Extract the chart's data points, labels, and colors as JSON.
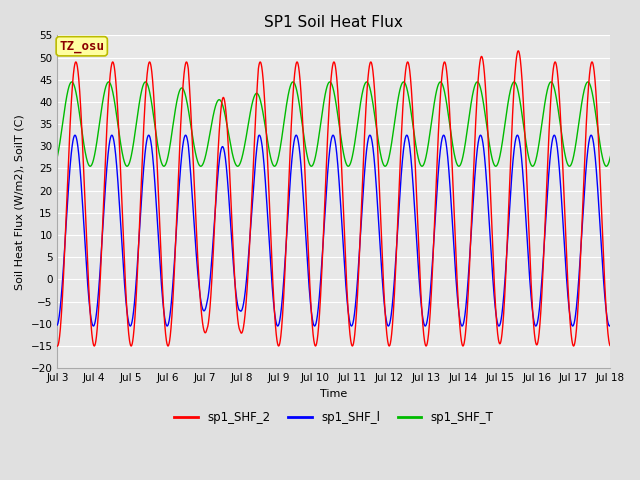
{
  "title": "SP1 Soil Heat Flux",
  "xlabel": "Time",
  "ylabel": "Soil Heat Flux (W/m2), SoilT (C)",
  "ylim": [
    -20,
    55
  ],
  "yticks": [
    -20,
    -15,
    -10,
    -5,
    0,
    5,
    10,
    15,
    20,
    25,
    30,
    35,
    40,
    45,
    50,
    55
  ],
  "x_start_day": 3,
  "x_end_day": 18,
  "xtick_days": [
    3,
    4,
    5,
    6,
    7,
    8,
    9,
    10,
    11,
    12,
    13,
    14,
    15,
    16,
    17,
    18
  ],
  "xtick_labels": [
    "Jul 3",
    "Jul 4",
    "Jul 5",
    "Jul 6",
    "Jul 7",
    "Jul 8",
    "Jul 9",
    "Jul 10",
    "Jul 11",
    "Jul 12",
    "Jul 13",
    "Jul 14",
    "Jul 15",
    "Jul 16",
    "Jul 17",
    "Jul 18"
  ],
  "color_shf2": "#FF0000",
  "color_shf1": "#0000FF",
  "color_shfT": "#00BB00",
  "legend_labels": [
    "sp1_SHF_2",
    "sp1_SHF_l",
    "sp1_SHF_T"
  ],
  "annotation_text": "TZ_osu",
  "annotation_color": "#8B0000",
  "annotation_bg": "#FFFFA0",
  "plot_bg": "#E8E8E8",
  "fig_bg": "#E0E0E0",
  "grid_color": "#FFFFFF",
  "linewidth": 1.0
}
